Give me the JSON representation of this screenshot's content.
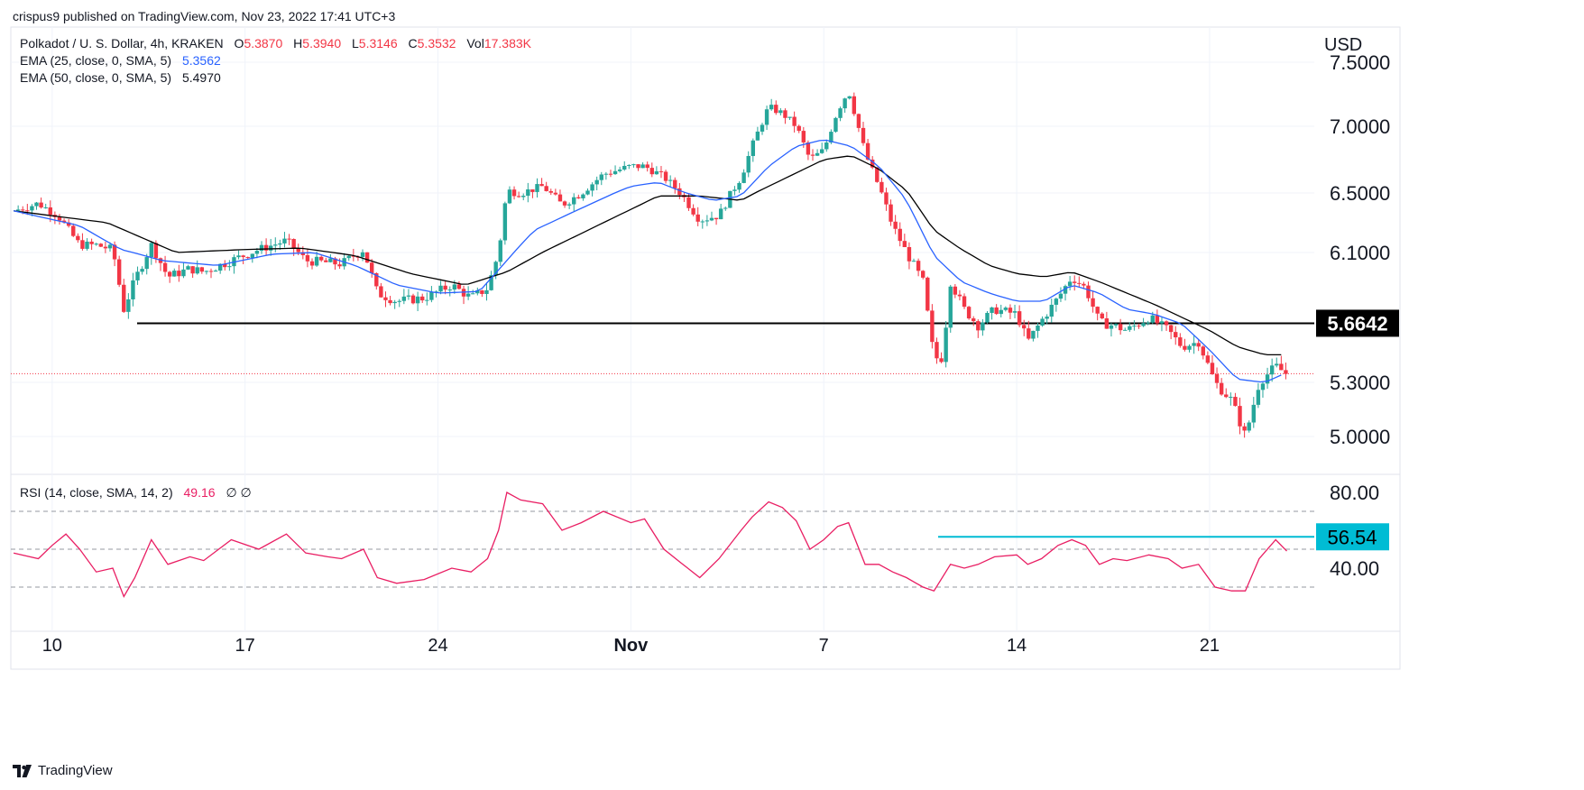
{
  "header": {
    "publisher": "crispus9 published on TradingView.com, Nov 23, 2022 17:41 UTC+3"
  },
  "legend": {
    "symbol": "Polkadot / U. S. Dollar, 4h, KRAKEN",
    "open_label": "O",
    "open": "5.3870",
    "high_label": "H",
    "high": "5.3940",
    "low_label": "L",
    "low": "5.3146",
    "close_label": "C",
    "close": "5.3532",
    "vol_label": "Vol",
    "vol": "17.383K",
    "ema25_label": "EMA (25, close, 0, SMA, 5)",
    "ema25_value": "5.3562",
    "ema50_label": "EMA (50, close, 0, SMA, 5)",
    "ema50_value": "5.4970",
    "rsi_label": "RSI (14, close, SMA, 14, 2)",
    "rsi_value": "49.16",
    "rsi_extra": "∅ ∅"
  },
  "footer": {
    "brand": "TradingView"
  },
  "colors": {
    "up": "#26a69a",
    "down": "#f23645",
    "ema25": "#2962ff",
    "ema50": "#000000",
    "rsi": "#e91e63",
    "rsi_level": "#00bcd4",
    "support": "#000000"
  },
  "chart_data": {
    "type": "candlestick",
    "currency": "USD",
    "price_axis_labels": [
      "7.5000",
      "7.0000",
      "6.5000",
      "6.1000",
      "5.3000",
      "5.0000"
    ],
    "price_axis_values": [
      7.5,
      7.0,
      6.5,
      6.1,
      5.3,
      5.0
    ],
    "support_level": {
      "value": 5.6642,
      "label": "5.6642"
    },
    "last_price": 5.3532,
    "rsi_axis_labels": [
      "80.00",
      "40.00"
    ],
    "rsi_axis_values": [
      80,
      40
    ],
    "rsi_bands": [
      70,
      50,
      30
    ],
    "rsi_level": {
      "value": 56.54,
      "label": "56.54"
    },
    "x_labels": [
      "10",
      "17",
      "24",
      "Nov",
      "7",
      "14",
      "21"
    ],
    "x_label_pos": [
      1,
      8,
      15,
      22,
      29,
      36,
      43
    ],
    "x_range_days": [
      -0.5,
      46.8
    ],
    "close_key": [
      [
        -0.4,
        6.38
      ],
      [
        0.5,
        6.43
      ],
      [
        1.2,
        6.35
      ],
      [
        2.0,
        6.15
      ],
      [
        2.6,
        6.15
      ],
      [
        3.2,
        6.12
      ],
      [
        3.6,
        5.75
      ],
      [
        4.0,
        5.93
      ],
      [
        4.6,
        6.15
      ],
      [
        5.2,
        5.95
      ],
      [
        6.0,
        6.0
      ],
      [
        6.5,
        5.98
      ],
      [
        7.5,
        6.05
      ],
      [
        8.5,
        6.12
      ],
      [
        9.5,
        6.18
      ],
      [
        10.2,
        6.05
      ],
      [
        11.5,
        6.03
      ],
      [
        12.3,
        6.12
      ],
      [
        12.8,
        5.85
      ],
      [
        13.5,
        5.8
      ],
      [
        14.5,
        5.82
      ],
      [
        15.5,
        5.9
      ],
      [
        16.2,
        5.82
      ],
      [
        16.8,
        5.88
      ],
      [
        17.2,
        6.1
      ],
      [
        17.5,
        6.52
      ],
      [
        18.0,
        6.5
      ],
      [
        18.8,
        6.55
      ],
      [
        19.5,
        6.42
      ],
      [
        20.2,
        6.5
      ],
      [
        21.0,
        6.64
      ],
      [
        22.0,
        6.7
      ],
      [
        22.5,
        6.7
      ],
      [
        23.2,
        6.62
      ],
      [
        23.8,
        6.5
      ],
      [
        24.5,
        6.32
      ],
      [
        25.2,
        6.35
      ],
      [
        26.0,
        6.62
      ],
      [
        26.4,
        6.85
      ],
      [
        27.0,
        7.15
      ],
      [
        27.5,
        7.1
      ],
      [
        28.0,
        7.0
      ],
      [
        28.5,
        6.75
      ],
      [
        29.0,
        6.82
      ],
      [
        29.5,
        7.12
      ],
      [
        29.9,
        7.28
      ],
      [
        30.5,
        6.8
      ],
      [
        31.0,
        6.55
      ],
      [
        31.5,
        6.28
      ],
      [
        32.0,
        6.1
      ],
      [
        32.6,
        5.92
      ],
      [
        33.0,
        5.45
      ],
      [
        33.3,
        5.45
      ],
      [
        33.6,
        5.92
      ],
      [
        34.1,
        5.75
      ],
      [
        34.6,
        5.65
      ],
      [
        35.2,
        5.75
      ],
      [
        36.0,
        5.72
      ],
      [
        36.4,
        5.55
      ],
      [
        36.9,
        5.68
      ],
      [
        37.5,
        5.82
      ],
      [
        38.0,
        5.95
      ],
      [
        38.5,
        5.88
      ],
      [
        39.0,
        5.67
      ],
      [
        39.5,
        5.65
      ],
      [
        40.0,
        5.62
      ],
      [
        40.8,
        5.7
      ],
      [
        41.5,
        5.62
      ],
      [
        42.0,
        5.52
      ],
      [
        42.6,
        5.55
      ],
      [
        43.2,
        5.3
      ],
      [
        43.8,
        5.2
      ],
      [
        44.3,
        5.0
      ],
      [
        44.8,
        5.3
      ],
      [
        45.4,
        5.4
      ],
      [
        45.8,
        5.35
      ]
    ],
    "ema25_key": [
      [
        -0.4,
        6.38
      ],
      [
        2.0,
        6.28
      ],
      [
        3.5,
        6.12
      ],
      [
        5.0,
        6.05
      ],
      [
        7.0,
        6.02
      ],
      [
        9.0,
        6.09
      ],
      [
        10.5,
        6.1
      ],
      [
        12.0,
        6.02
      ],
      [
        13.5,
        5.9
      ],
      [
        15.0,
        5.85
      ],
      [
        16.5,
        5.86
      ],
      [
        17.5,
        6.05
      ],
      [
        18.5,
        6.25
      ],
      [
        20.0,
        6.38
      ],
      [
        22.0,
        6.55
      ],
      [
        23.0,
        6.58
      ],
      [
        24.0,
        6.5
      ],
      [
        25.0,
        6.45
      ],
      [
        26.0,
        6.48
      ],
      [
        27.0,
        6.7
      ],
      [
        28.0,
        6.85
      ],
      [
        29.0,
        6.9
      ],
      [
        30.0,
        6.85
      ],
      [
        31.0,
        6.7
      ],
      [
        32.0,
        6.45
      ],
      [
        33.0,
        6.08
      ],
      [
        34.0,
        5.92
      ],
      [
        35.0,
        5.85
      ],
      [
        36.0,
        5.8
      ],
      [
        37.0,
        5.8
      ],
      [
        38.0,
        5.9
      ],
      [
        39.0,
        5.85
      ],
      [
        40.0,
        5.75
      ],
      [
        41.0,
        5.72
      ],
      [
        42.0,
        5.66
      ],
      [
        43.0,
        5.5
      ],
      [
        44.0,
        5.32
      ],
      [
        45.0,
        5.3
      ],
      [
        45.8,
        5.36
      ]
    ],
    "ema50_key": [
      [
        -0.4,
        6.38
      ],
      [
        3.0,
        6.3
      ],
      [
        5.5,
        6.1
      ],
      [
        8.0,
        6.12
      ],
      [
        10.0,
        6.13
      ],
      [
        12.0,
        6.08
      ],
      [
        14.0,
        5.97
      ],
      [
        16.0,
        5.9
      ],
      [
        17.5,
        5.98
      ],
      [
        19.0,
        6.12
      ],
      [
        21.0,
        6.3
      ],
      [
        23.0,
        6.48
      ],
      [
        24.5,
        6.48
      ],
      [
        26.0,
        6.45
      ],
      [
        27.5,
        6.6
      ],
      [
        29.0,
        6.75
      ],
      [
        30.0,
        6.78
      ],
      [
        31.0,
        6.68
      ],
      [
        32.0,
        6.52
      ],
      [
        33.0,
        6.25
      ],
      [
        34.0,
        6.12
      ],
      [
        35.0,
        6.02
      ],
      [
        36.0,
        5.97
      ],
      [
        37.0,
        5.95
      ],
      [
        38.0,
        5.98
      ],
      [
        39.0,
        5.92
      ],
      [
        40.0,
        5.85
      ],
      [
        41.0,
        5.78
      ],
      [
        42.0,
        5.7
      ],
      [
        43.0,
        5.62
      ],
      [
        44.0,
        5.52
      ],
      [
        45.0,
        5.47
      ],
      [
        45.8,
        5.47
      ]
    ],
    "rsi_key": [
      [
        -0.4,
        48
      ],
      [
        0.5,
        45
      ],
      [
        1.0,
        52
      ],
      [
        1.5,
        58
      ],
      [
        2.0,
        50
      ],
      [
        2.6,
        38
      ],
      [
        3.2,
        40
      ],
      [
        3.6,
        25
      ],
      [
        4.0,
        35
      ],
      [
        4.6,
        55
      ],
      [
        5.2,
        42
      ],
      [
        6.0,
        46
      ],
      [
        6.5,
        44
      ],
      [
        7.5,
        55
      ],
      [
        8.5,
        50
      ],
      [
        9.5,
        58
      ],
      [
        10.2,
        48
      ],
      [
        11.0,
        46
      ],
      [
        11.5,
        45
      ],
      [
        12.3,
        50
      ],
      [
        12.8,
        35
      ],
      [
        13.5,
        32
      ],
      [
        14.5,
        34
      ],
      [
        15.5,
        40
      ],
      [
        16.2,
        38
      ],
      [
        16.8,
        45
      ],
      [
        17.2,
        60
      ],
      [
        17.5,
        80
      ],
      [
        18.0,
        76
      ],
      [
        18.8,
        74
      ],
      [
        19.5,
        60
      ],
      [
        20.2,
        64
      ],
      [
        21.0,
        70
      ],
      [
        22.0,
        64
      ],
      [
        22.5,
        66
      ],
      [
        23.2,
        50
      ],
      [
        23.8,
        43
      ],
      [
        24.5,
        35
      ],
      [
        25.2,
        45
      ],
      [
        26.0,
        60
      ],
      [
        26.4,
        67
      ],
      [
        27.0,
        75
      ],
      [
        27.5,
        72
      ],
      [
        28.0,
        65
      ],
      [
        28.5,
        50
      ],
      [
        29.0,
        55
      ],
      [
        29.5,
        62
      ],
      [
        29.9,
        64
      ],
      [
        30.5,
        42
      ],
      [
        31.0,
        42
      ],
      [
        31.5,
        38
      ],
      [
        32.0,
        35
      ],
      [
        32.6,
        30
      ],
      [
        33.0,
        28
      ],
      [
        33.6,
        42
      ],
      [
        34.1,
        40
      ],
      [
        34.6,
        42
      ],
      [
        35.2,
        46
      ],
      [
        36.0,
        47
      ],
      [
        36.4,
        42
      ],
      [
        36.9,
        45
      ],
      [
        37.5,
        52
      ],
      [
        38.0,
        55
      ],
      [
        38.5,
        52
      ],
      [
        39.0,
        42
      ],
      [
        39.5,
        45
      ],
      [
        40.0,
        44
      ],
      [
        40.8,
        47
      ],
      [
        41.5,
        45
      ],
      [
        42.0,
        40
      ],
      [
        42.6,
        42
      ],
      [
        43.2,
        30
      ],
      [
        43.8,
        28
      ],
      [
        44.3,
        28
      ],
      [
        44.8,
        45
      ],
      [
        45.4,
        55
      ],
      [
        45.8,
        49
      ]
    ]
  }
}
